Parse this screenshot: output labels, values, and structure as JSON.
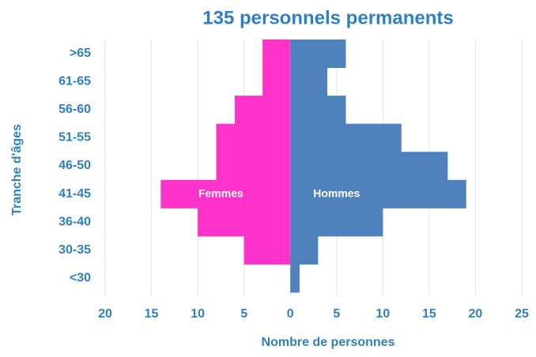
{
  "chart_data": {
    "type": "pyramid",
    "title": "135 personnels permanents",
    "x_label": "Nombre de personnes",
    "y_label": "Tranche d'âges",
    "categories": [
      ">65",
      "61-65",
      "56-60",
      "51-55",
      "46-50",
      "41-45",
      "36-40",
      "30-35",
      "<30"
    ],
    "series": [
      {
        "name": "Femmes",
        "color": "#ff33cc",
        "values": [
          -3,
          -3,
          -6,
          -8,
          -8,
          -14,
          -10,
          -5,
          0
        ]
      },
      {
        "name": "Hommes",
        "color": "#4f81bd",
        "values": [
          6,
          4,
          6,
          12,
          17,
          19,
          10,
          3,
          1
        ]
      }
    ],
    "xlim": [
      -20,
      25
    ],
    "xticks": [
      {
        "value": -20,
        "label": "20"
      },
      {
        "value": -15,
        "label": "15"
      },
      {
        "value": -10,
        "label": "10"
      },
      {
        "value": -5,
        "label": "5"
      },
      0,
      5,
      10,
      15,
      20,
      25
    ],
    "grid": true
  }
}
